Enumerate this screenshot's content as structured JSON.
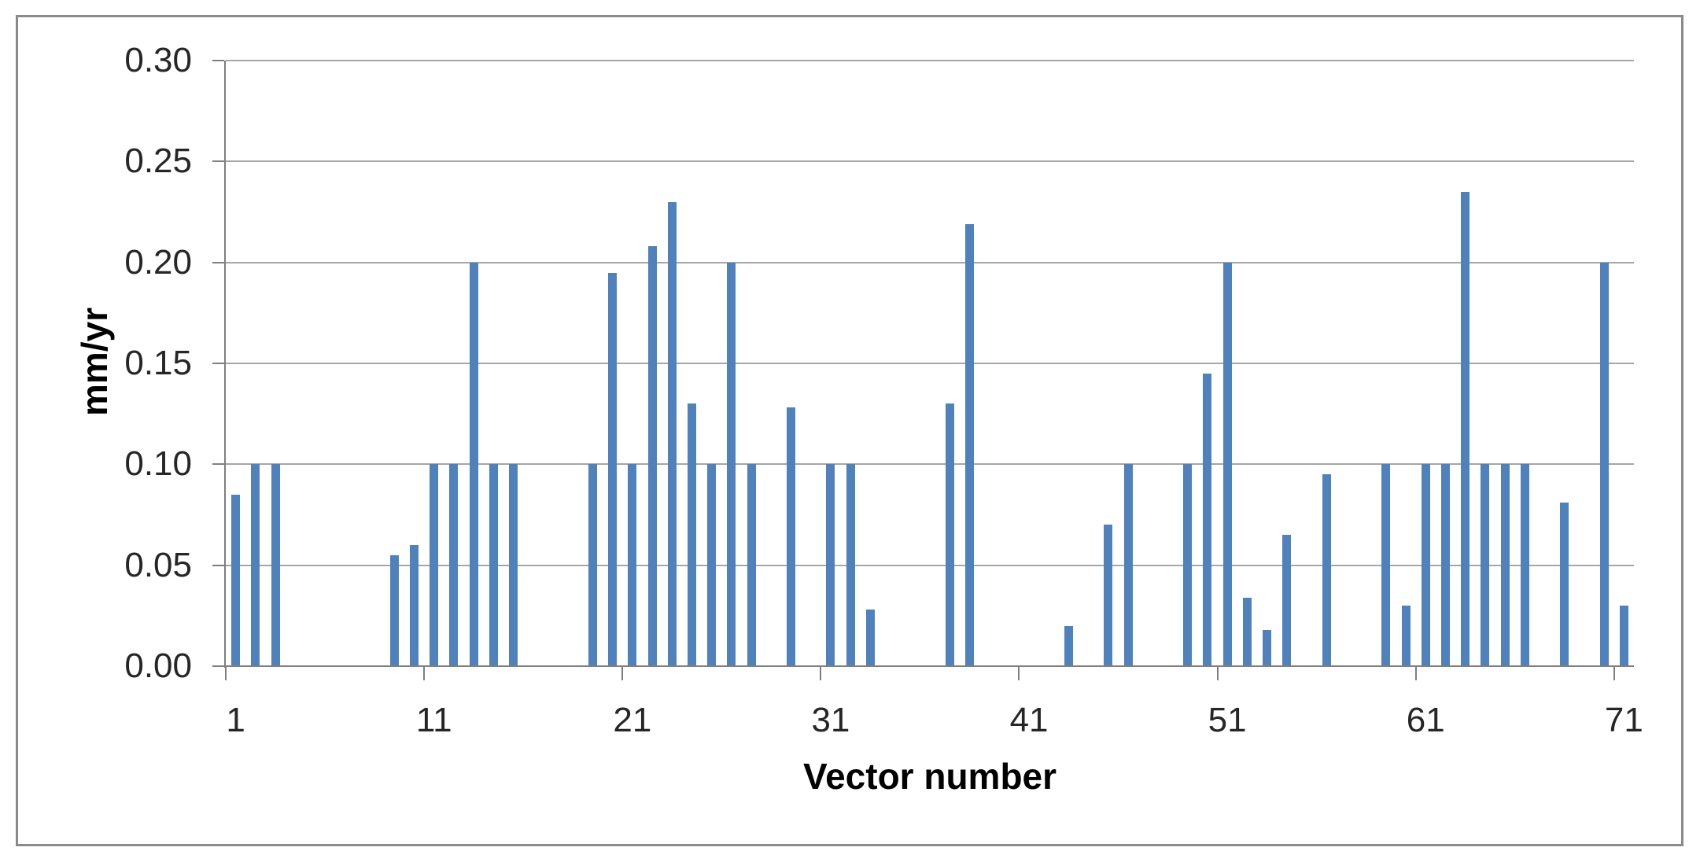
{
  "window": {
    "background": "#ffffff",
    "frame_border_color": "#8a8a8a"
  },
  "chart_data": {
    "type": "bar",
    "title": "",
    "xlabel": "Vector number",
    "ylabel": "mm/yr",
    "categories": [
      1,
      2,
      3,
      4,
      5,
      6,
      7,
      8,
      9,
      10,
      11,
      12,
      13,
      14,
      15,
      16,
      17,
      18,
      19,
      20,
      21,
      22,
      23,
      24,
      25,
      26,
      27,
      28,
      29,
      30,
      31,
      32,
      33,
      34,
      35,
      36,
      37,
      38,
      39,
      40,
      41,
      42,
      43,
      44,
      45,
      46,
      47,
      48,
      49,
      50,
      51,
      52,
      53,
      54,
      55,
      56,
      57,
      58,
      59,
      60,
      61,
      62,
      63,
      64,
      65,
      66,
      67,
      68,
      69,
      70,
      71
    ],
    "values": [
      0.085,
      0.1,
      0.1,
      0,
      0,
      0,
      0,
      0,
      0.055,
      0.06,
      0.1,
      0.1,
      0.2,
      0.1,
      0.1,
      0,
      0,
      0,
      0.1,
      0.195,
      0.1,
      0.208,
      0.23,
      0.13,
      0.1,
      0.2,
      0.1,
      0,
      0.128,
      0,
      0.1,
      0.1,
      0.028,
      0,
      0,
      0,
      0.13,
      0.219,
      0,
      0,
      0,
      0,
      0.02,
      0,
      0.07,
      0.1,
      0,
      0,
      0.1,
      0.145,
      0.2,
      0.034,
      0.018,
      0.065,
      0,
      0.095,
      0,
      0,
      0.1,
      0.03,
      0.1,
      0.1,
      0.235,
      0.1,
      0.1,
      0.1,
      0,
      0.081,
      0,
      0.2,
      0.03
    ],
    "ylim": [
      0,
      0.3
    ],
    "yticks": {
      "values": [
        0,
        0.05,
        0.1,
        0.15,
        0.2,
        0.25,
        0.3
      ],
      "labels": [
        "0.00",
        "0.05",
        "0.10",
        "0.15",
        "0.20",
        "0.25",
        "0.30"
      ]
    },
    "xticks": {
      "label_positions": [
        1,
        11,
        21,
        31,
        41,
        51,
        61,
        71
      ],
      "labels": [
        "1",
        "11",
        "21",
        "31",
        "41",
        "51",
        "61",
        "71"
      ],
      "boundary_tick_interval": 10
    },
    "grid": "horizontal-major",
    "legend": "none",
    "colors": {
      "bar": "#4F81BD",
      "gridline": "#a6a6a6",
      "axis": "#7f7f7f",
      "tick_label": "#262626",
      "axis_title": "#000000"
    }
  }
}
